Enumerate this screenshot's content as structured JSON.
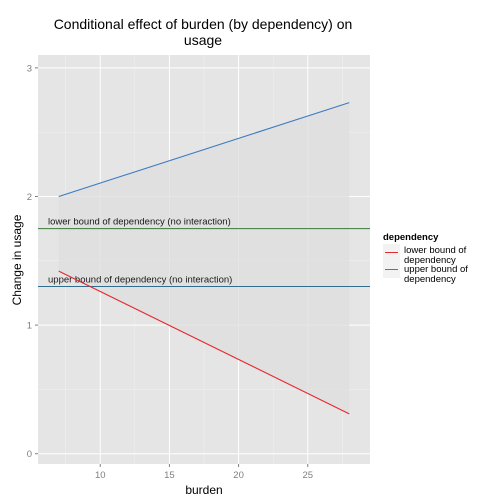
{
  "chart_data": {
    "type": "line",
    "title_lines": [
      "Conditional effect of burden (by dependency) on",
      "usage"
    ],
    "xlabel": "burden",
    "ylabel": "Change in usage",
    "xlim": [
      5.5,
      29.5
    ],
    "ylim": [
      -0.08,
      3.1
    ],
    "x_ticks": [
      10,
      15,
      20,
      25
    ],
    "y_ticks": [
      0,
      1,
      2,
      3
    ],
    "grid": true,
    "legend": {
      "title": "dependency",
      "placement": "right",
      "entries": [
        {
          "label_lines": [
            "lower bound of",
            "dependency"
          ],
          "color": "#e8272d"
        },
        {
          "label_lines": [
            "upper bound of",
            "dependency"
          ],
          "color": "#3b7bbf"
        }
      ]
    },
    "series": [
      {
        "name": "lower bound of dependency",
        "color": "#e8272d",
        "x": [
          7,
          28
        ],
        "y": [
          1.42,
          0.31
        ]
      },
      {
        "name": "upper bound of dependency",
        "color": "#3b7bbf",
        "x": [
          7,
          28
        ],
        "y": [
          2.0,
          2.73
        ]
      }
    ],
    "band": {
      "x": [
        7,
        28
      ],
      "upper": [
        2.0,
        2.73
      ],
      "lower": [
        1.42,
        0.31
      ],
      "color": "#dedede"
    },
    "hlines": [
      {
        "y": 1.75,
        "color": "#3a7a3a",
        "label": "lower bound of dependency (no interaction)"
      },
      {
        "y": 1.3,
        "color": "#2f6e8f",
        "label": "upper bound of dependency (no interaction)"
      }
    ]
  }
}
